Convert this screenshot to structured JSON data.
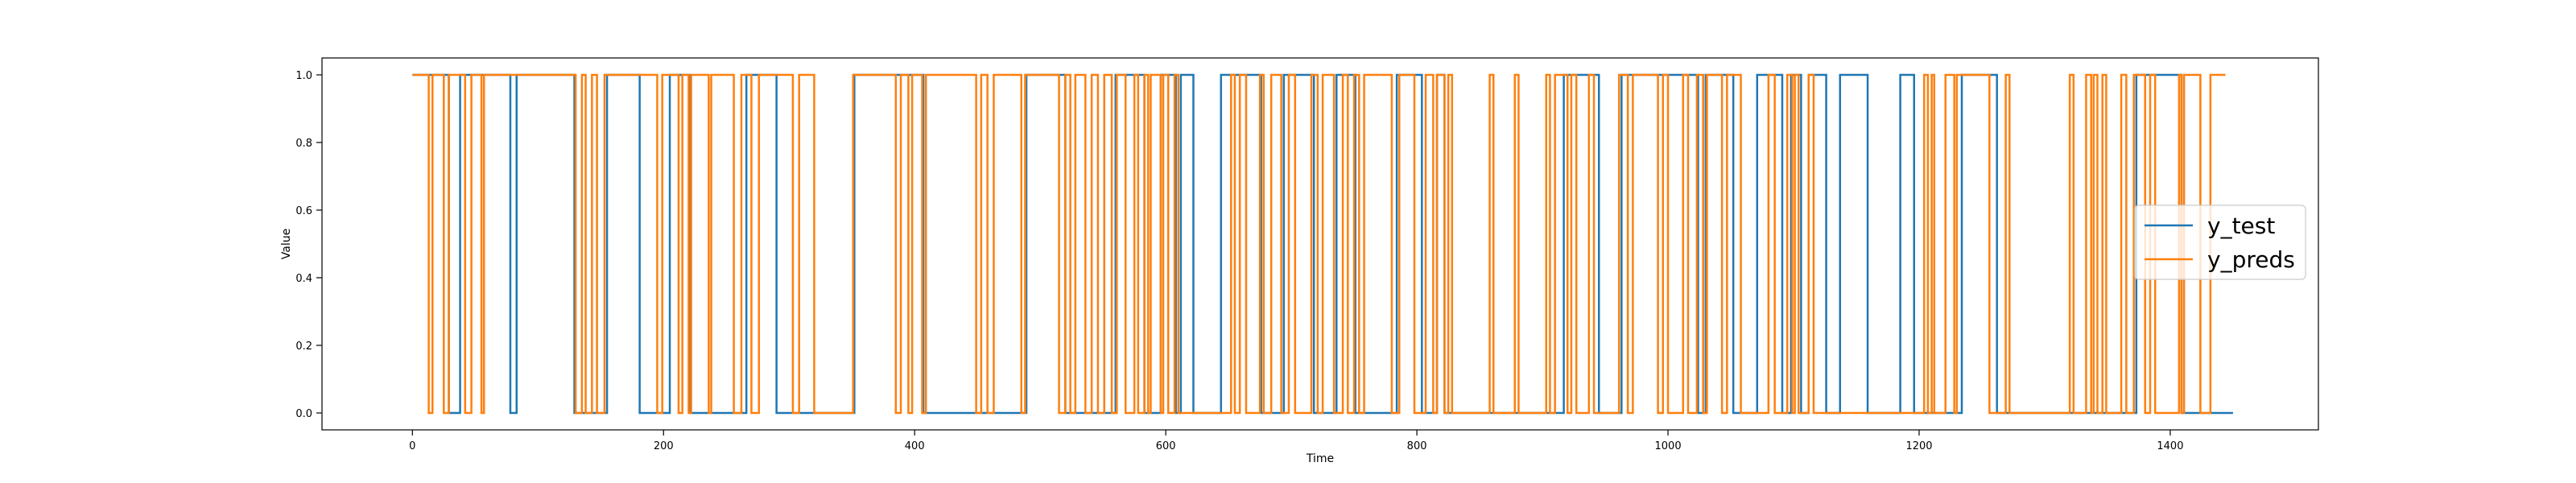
{
  "chart_data": {
    "type": "line",
    "xlabel": "Time",
    "ylabel": "Value",
    "xlim": [
      -72,
      1518
    ],
    "ylim": [
      -0.05,
      1.05
    ],
    "xticks": [
      0,
      200,
      400,
      600,
      800,
      1000,
      1200,
      1400
    ],
    "yticks": [
      0.0,
      0.2,
      0.4,
      0.6,
      0.8,
      1.0
    ],
    "xtick_labels": [
      "0",
      "200",
      "400",
      "600",
      "800",
      "1000",
      "1200",
      "1400"
    ],
    "ytick_labels": [
      "0.0",
      "0.2",
      "0.4",
      "0.6",
      "0.8",
      "1.0"
    ],
    "grid": false,
    "legend_position": "center-right",
    "series": [
      {
        "name": "y_test",
        "color": "#1f77b4",
        "steps": [
          [
            0,
            1
          ],
          [
            29,
            0
          ],
          [
            38,
            1
          ],
          [
            78,
            0
          ],
          [
            83,
            1
          ],
          [
            129,
            0
          ],
          [
            155,
            1
          ],
          [
            181,
            0
          ],
          [
            205,
            1
          ],
          [
            221,
            0
          ],
          [
            266,
            1
          ],
          [
            290,
            0
          ],
          [
            352,
            1
          ],
          [
            407,
            0
          ],
          [
            489,
            1
          ],
          [
            520,
            0
          ],
          [
            560,
            1
          ],
          [
            583,
            0
          ],
          [
            596,
            1
          ],
          [
            608,
            0
          ],
          [
            612,
            1
          ],
          [
            622,
            0
          ],
          [
            644,
            1
          ],
          [
            676,
            0
          ],
          [
            694,
            1
          ],
          [
            718,
            0
          ],
          [
            736,
            1
          ],
          [
            751,
            0
          ],
          [
            784,
            1
          ],
          [
            804,
            0
          ],
          [
            816,
            1
          ],
          [
            822,
            0
          ],
          [
            917,
            1
          ],
          [
            945,
            0
          ],
          [
            963,
            1
          ],
          [
            1024,
            0
          ],
          [
            1030,
            1
          ],
          [
            1052,
            0
          ],
          [
            1071,
            1
          ],
          [
            1091,
            0
          ],
          [
            1098,
            1
          ],
          [
            1106,
            0
          ],
          [
            1112,
            1
          ],
          [
            1126,
            0
          ],
          [
            1137,
            1
          ],
          [
            1159,
            0
          ],
          [
            1185,
            1
          ],
          [
            1196,
            0
          ],
          [
            1234,
            1
          ],
          [
            1262,
            0
          ],
          [
            1373,
            1
          ],
          [
            1409,
            0
          ],
          [
            1450,
            0
          ]
        ]
      },
      {
        "name": "y_preds",
        "color": "#ff7f0e",
        "steps": [
          [
            0,
            1
          ],
          [
            13,
            0
          ],
          [
            16,
            1
          ],
          [
            25,
            0
          ],
          [
            29,
            1
          ],
          [
            42,
            0
          ],
          [
            47,
            1
          ],
          [
            55,
            0
          ],
          [
            57,
            1
          ],
          [
            130,
            0
          ],
          [
            135,
            1
          ],
          [
            138,
            0
          ],
          [
            143,
            1
          ],
          [
            147,
            0
          ],
          [
            153,
            1
          ],
          [
            195,
            0
          ],
          [
            199,
            1
          ],
          [
            212,
            0
          ],
          [
            215,
            1
          ],
          [
            220,
            0
          ],
          [
            222,
            1
          ],
          [
            236,
            0
          ],
          [
            238,
            1
          ],
          [
            256,
            0
          ],
          [
            262,
            1
          ],
          [
            270,
            0
          ],
          [
            276,
            1
          ],
          [
            303,
            0
          ],
          [
            308,
            1
          ],
          [
            320,
            0
          ],
          [
            351,
            1
          ],
          [
            385,
            0
          ],
          [
            389,
            1
          ],
          [
            395,
            0
          ],
          [
            398,
            1
          ],
          [
            406,
            0
          ],
          [
            409,
            1
          ],
          [
            449,
            0
          ],
          [
            453,
            1
          ],
          [
            458,
            0
          ],
          [
            463,
            1
          ],
          [
            485,
            0
          ],
          [
            488,
            1
          ],
          [
            515,
            0
          ],
          [
            520,
            1
          ],
          [
            524,
            0
          ],
          [
            528,
            1
          ],
          [
            536,
            0
          ],
          [
            541,
            1
          ],
          [
            546,
            0
          ],
          [
            551,
            1
          ],
          [
            557,
            0
          ],
          [
            561,
            1
          ],
          [
            568,
            0
          ],
          [
            575,
            1
          ],
          [
            578,
            0
          ],
          [
            583,
            1
          ],
          [
            586,
            0
          ],
          [
            588,
            1
          ],
          [
            596,
            0
          ],
          [
            598,
            1
          ],
          [
            602,
            0
          ],
          [
            607,
            1
          ],
          [
            610,
            0
          ],
          [
            652,
            1
          ],
          [
            655,
            0
          ],
          [
            659,
            1
          ],
          [
            664,
            0
          ],
          [
            675,
            1
          ],
          [
            678,
            0
          ],
          [
            684,
            1
          ],
          [
            692,
            0
          ],
          [
            698,
            1
          ],
          [
            703,
            0
          ],
          [
            716,
            1
          ],
          [
            721,
            0
          ],
          [
            725,
            1
          ],
          [
            734,
            0
          ],
          [
            741,
            1
          ],
          [
            745,
            0
          ],
          [
            750,
            1
          ],
          [
            754,
            0
          ],
          [
            758,
            1
          ],
          [
            780,
            0
          ],
          [
            786,
            1
          ],
          [
            798,
            0
          ],
          [
            807,
            1
          ],
          [
            813,
            0
          ],
          [
            816,
            1
          ],
          [
            822,
            0
          ],
          [
            825,
            1
          ],
          [
            828,
            0
          ],
          [
            858,
            1
          ],
          [
            861,
            0
          ],
          [
            878,
            1
          ],
          [
            881,
            0
          ],
          [
            903,
            1
          ],
          [
            906,
            0
          ],
          [
            910,
            1
          ],
          [
            920,
            0
          ],
          [
            923,
            1
          ],
          [
            927,
            0
          ],
          [
            937,
            1
          ],
          [
            941,
            0
          ],
          [
            961,
            1
          ],
          [
            968,
            0
          ],
          [
            972,
            1
          ],
          [
            992,
            0
          ],
          [
            996,
            1
          ],
          [
            1000,
            0
          ],
          [
            1012,
            1
          ],
          [
            1016,
            0
          ],
          [
            1023,
            1
          ],
          [
            1028,
            0
          ],
          [
            1031,
            1
          ],
          [
            1043,
            0
          ],
          [
            1047,
            1
          ],
          [
            1058,
            0
          ],
          [
            1080,
            1
          ],
          [
            1085,
            0
          ],
          [
            1095,
            1
          ],
          [
            1099,
            0
          ],
          [
            1101,
            1
          ],
          [
            1104,
            0
          ],
          [
            1112,
            1
          ],
          [
            1116,
            0
          ],
          [
            1204,
            1
          ],
          [
            1207,
            0
          ],
          [
            1210,
            1
          ],
          [
            1212,
            0
          ],
          [
            1221,
            1
          ],
          [
            1228,
            0
          ],
          [
            1230,
            1
          ],
          [
            1256,
            0
          ],
          [
            1269,
            1
          ],
          [
            1272,
            0
          ],
          [
            1320,
            1
          ],
          [
            1323,
            0
          ],
          [
            1333,
            1
          ],
          [
            1337,
            0
          ],
          [
            1339,
            1
          ],
          [
            1342,
            0
          ],
          [
            1346,
            1
          ],
          [
            1349,
            0
          ],
          [
            1361,
            1
          ],
          [
            1365,
            0
          ],
          [
            1371,
            1
          ],
          [
            1380,
            0
          ],
          [
            1384,
            1
          ],
          [
            1388,
            0
          ],
          [
            1407,
            1
          ],
          [
            1409,
            0
          ],
          [
            1411,
            1
          ],
          [
            1424,
            0
          ],
          [
            1432,
            1
          ],
          [
            1444,
            1
          ]
        ]
      }
    ]
  }
}
